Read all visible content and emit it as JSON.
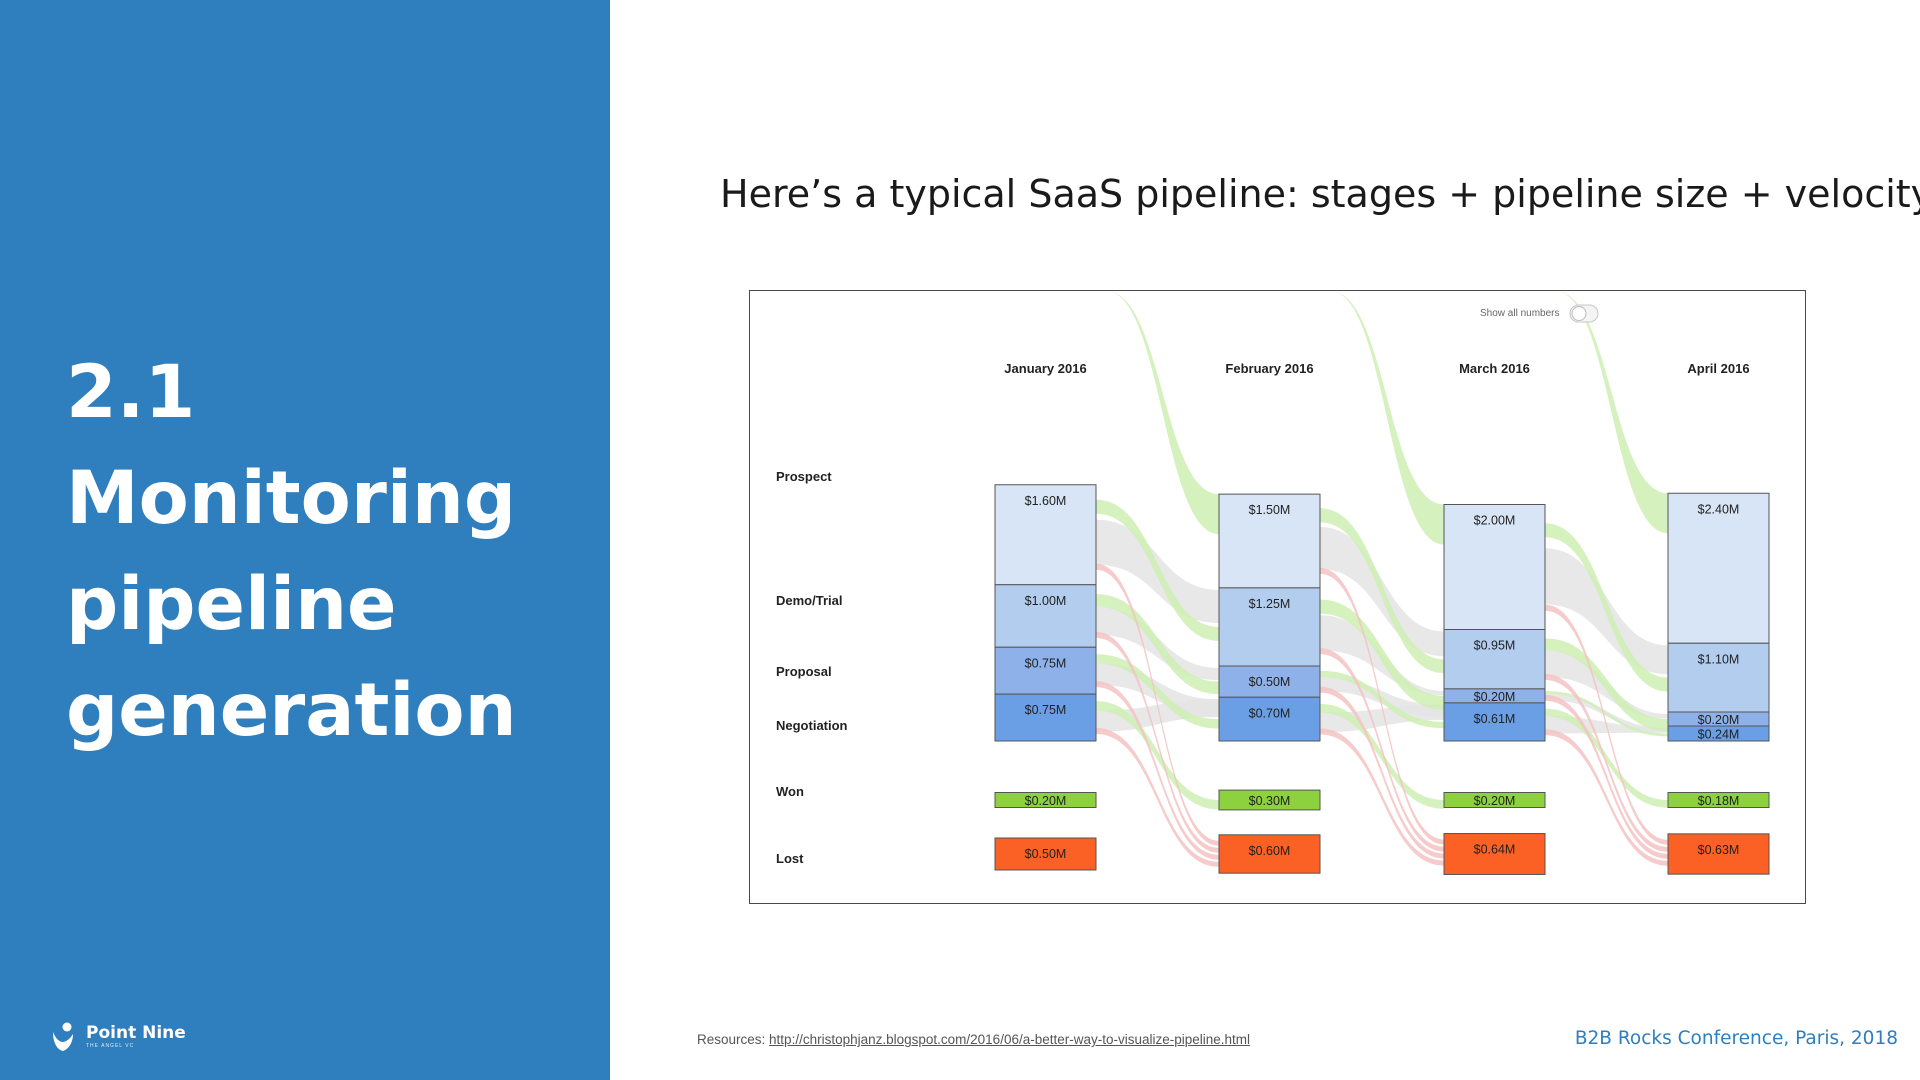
{
  "sidebar": {
    "title_lines": [
      "2.1",
      "Monitoring",
      "pipeline",
      "generation"
    ],
    "logo_name": "Point Nine",
    "logo_subtitle": "THE ANGEL VC"
  },
  "heading": "Here’s a typical SaaS pipeline: stages + pipeline size + velocity",
  "resources": {
    "label": "Resources:",
    "link": "http://christophjanz.blogspot.com/2016/06/a-better-way-to-visualize-pipeline.html"
  },
  "footer": "B2B Rocks Conference, Paris, 2018",
  "colors": {
    "sidebar_blue": "#2f7ebd",
    "prospect": "#d7e5f6",
    "demo_trial": "#b3cdee",
    "proposal": "#8db1e8",
    "negotiation": "#6a9fe5",
    "won": "#8dd13e",
    "lost": "#fb6024",
    "flow_won": "#cdeeb3",
    "flow_lost": "#f4c2c2",
    "flow_carry": "#e4e4e4"
  },
  "chart_data": {
    "type": "stacked-bar-flow",
    "toggle_label": "Show all numbers",
    "stages": [
      "Prospect",
      "Demo/Trial",
      "Proposal",
      "Negotiation",
      "Won",
      "Lost"
    ],
    "periods": [
      {
        "label": "January 2016",
        "values": {
          "Prospect": 1.6,
          "Demo/Trial": 1.0,
          "Proposal": 0.75,
          "Negotiation": 0.75,
          "Won": 0.2,
          "Lost": 0.5
        },
        "labels": {
          "Prospect": "$1.60M",
          "Demo/Trial": "$1.00M",
          "Proposal": "$0.75M",
          "Negotiation": "$0.75M",
          "Won": "$0.20M",
          "Lost": "$0.50M"
        }
      },
      {
        "label": "February 2016",
        "values": {
          "Prospect": 1.5,
          "Demo/Trial": 1.25,
          "Proposal": 0.5,
          "Negotiation": 0.7,
          "Won": 0.3,
          "Lost": 0.6
        },
        "labels": {
          "Prospect": "$1.50M",
          "Demo/Trial": "$1.25M",
          "Proposal": "$0.50M",
          "Negotiation": "$0.70M",
          "Won": "$0.30M",
          "Lost": "$0.60M"
        }
      },
      {
        "label": "March 2016",
        "values": {
          "Prospect": 2.0,
          "Demo/Trial": 0.95,
          "Proposal": 0.2,
          "Negotiation": 0.61,
          "Won": 0.2,
          "Lost": 0.64
        },
        "labels": {
          "Prospect": "$2.00M",
          "Demo/Trial": "$0.95M",
          "Proposal": "$0.20M",
          "Negotiation": "$0.61M",
          "Won": "$0.20M",
          "Lost": "$0.64M"
        }
      },
      {
        "label": "April 2016",
        "values": {
          "Prospect": 2.4,
          "Demo/Trial": 1.1,
          "Proposal": 0.2,
          "Negotiation": 0.24,
          "Won": 0.18,
          "Lost": 0.63
        },
        "labels": {
          "Prospect": "$2.40M",
          "Demo/Trial": "$1.10M",
          "Proposal": "$0.20M",
          "Negotiation": "$0.24M",
          "Won": "$0.18M",
          "Lost": "$0.63M"
        }
      }
    ]
  }
}
